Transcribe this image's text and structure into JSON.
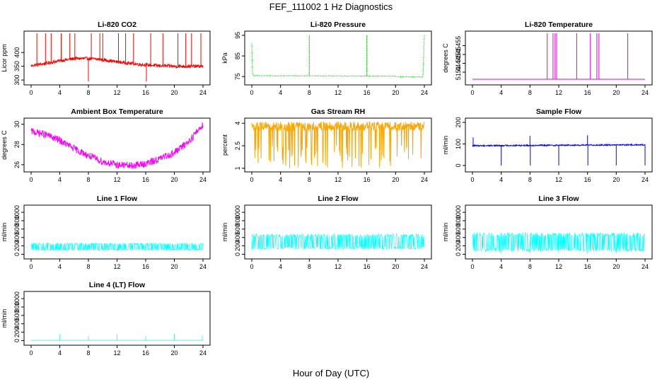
{
  "figure": {
    "title": "FEF_111002  1 Hz Diagnostics",
    "xlabel": "Hour of Day (UTC)"
  },
  "chart_data": [
    {
      "type": "line",
      "title": "Li-820 CO2",
      "ylabel": "Licor ppm",
      "color": "#ff0000",
      "xlim": [
        0,
        24
      ],
      "xticks": [
        0,
        4,
        8,
        12,
        16,
        20,
        24
      ],
      "ylim": [
        290,
        470
      ],
      "yticks": [
        300,
        350,
        400
      ],
      "baseline": [
        [
          0,
          352
        ],
        [
          2,
          360
        ],
        [
          4,
          370
        ],
        [
          6,
          378
        ],
        [
          8,
          378
        ],
        [
          10,
          374
        ],
        [
          12,
          366
        ],
        [
          14,
          360
        ],
        [
          16,
          355
        ],
        [
          18,
          352
        ],
        [
          20,
          350
        ],
        [
          22,
          350
        ],
        [
          24,
          350
        ]
      ],
      "noise": 6,
      "spikes": [
        [
          0.8,
          470
        ],
        [
          2.0,
          470
        ],
        [
          2.8,
          470
        ],
        [
          4.2,
          470
        ],
        [
          5.4,
          470
        ],
        [
          6.1,
          470
        ],
        [
          8.0,
          295
        ],
        [
          8.4,
          470
        ],
        [
          9.6,
          470
        ],
        [
          10.0,
          470
        ],
        [
          12.2,
          470
        ],
        [
          13.2,
          470
        ],
        [
          14.3,
          470
        ],
        [
          16.1,
          295
        ],
        [
          16.7,
          470
        ],
        [
          18.4,
          470
        ],
        [
          20.5,
          470
        ],
        [
          21.6,
          470
        ],
        [
          22.4,
          470
        ],
        [
          23.7,
          470
        ]
      ]
    },
    {
      "type": "line",
      "title": "Li-820 Pressure",
      "ylabel": "kPa",
      "color": "#00c000",
      "dotted": true,
      "xlim": [
        0,
        24
      ],
      "xticks": [
        0,
        4,
        8,
        12,
        16,
        20,
        24
      ],
      "ylim": [
        72,
        96
      ],
      "yticks": [
        75,
        85,
        95
      ],
      "baseline": [
        [
          0,
          91
        ],
        [
          0.1,
          76
        ],
        [
          0.3,
          75.4
        ],
        [
          20,
          75.2
        ],
        [
          20.1,
          75
        ],
        [
          23.8,
          74.8
        ],
        [
          24,
          95
        ]
      ],
      "noise": 0.1,
      "spikes": [
        [
          8.0,
          95
        ],
        [
          16.0,
          95
        ]
      ]
    },
    {
      "type": "line",
      "title": "Li-820 Temperature",
      "ylabel": "degrees C",
      "color": "#e000e0",
      "xlim": [
        0,
        24
      ],
      "xticks": [
        0,
        4,
        8,
        12,
        16,
        20,
        24
      ],
      "ylim": [
        51.434,
        51.462
      ],
      "yticks": [
        51.44,
        51.445,
        51.45,
        51.455
      ],
      "baseline": [
        [
          0,
          51.436
        ],
        [
          24,
          51.436
        ]
      ],
      "noise": 0,
      "spikes": [
        [
          10.4,
          51.462
        ],
        [
          11.2,
          51.462
        ],
        [
          11.5,
          51.462
        ],
        [
          11.7,
          51.462
        ],
        [
          14.5,
          51.462
        ],
        [
          16.4,
          51.462
        ],
        [
          17.3,
          51.462
        ],
        [
          17.6,
          51.462
        ],
        [
          21.6,
          51.462
        ]
      ]
    },
    {
      "type": "line",
      "title": "Ambient Box Temperature",
      "ylabel": "degrees C",
      "color": "#ff00ff",
      "xlim": [
        0,
        24
      ],
      "xticks": [
        0,
        4,
        8,
        12,
        16,
        20,
        24
      ],
      "ylim": [
        25.5,
        30.4
      ],
      "yticks": [
        26,
        28,
        30
      ],
      "baseline": [
        [
          0,
          29.3
        ],
        [
          2,
          29.0
        ],
        [
          4,
          28.4
        ],
        [
          6,
          27.6
        ],
        [
          8,
          26.9
        ],
        [
          10,
          26.3
        ],
        [
          12,
          26.0
        ],
        [
          14,
          25.9
        ],
        [
          16,
          26.1
        ],
        [
          18,
          26.6
        ],
        [
          20,
          27.2
        ],
        [
          22,
          28.3
        ],
        [
          24,
          30.0
        ]
      ],
      "noise": 0.35,
      "spikes": []
    },
    {
      "type": "line",
      "title": "Gas Stream RH",
      "ylabel": "percent",
      "color": "#ffa500",
      "xlim": [
        0,
        24
      ],
      "xticks": [
        0,
        4,
        8,
        12,
        16,
        20,
        24
      ],
      "ylim": [
        0.9,
        4.2
      ],
      "yticks": [
        1.0,
        2.5,
        4.0
      ],
      "baseline": [
        [
          0,
          3.8
        ],
        [
          24,
          3.8
        ]
      ],
      "noise": 0.3,
      "spikes": []
    },
    {
      "type": "line",
      "title": "Sample Flow",
      "ylabel": "ml/min",
      "color": "#0000ff",
      "xlim": [
        0,
        24
      ],
      "xticks": [
        0,
        4,
        8,
        12,
        16,
        20,
        24
      ],
      "ylim": [
        -20,
        210
      ],
      "yticks": [
        0,
        100,
        200
      ],
      "baseline": [
        [
          0,
          92
        ],
        [
          24,
          96
        ]
      ],
      "noise": 3,
      "spikes": [
        [
          0.1,
          130
        ],
        [
          4.0,
          0
        ],
        [
          8.0,
          138
        ],
        [
          8.05,
          0
        ],
        [
          12.0,
          0
        ],
        [
          16.0,
          140
        ],
        [
          16.05,
          0
        ],
        [
          20.0,
          0
        ],
        [
          24.0,
          0
        ]
      ]
    },
    {
      "type": "line",
      "title": "Line 1 Flow",
      "ylabel": "ml/min",
      "color": "#00ffff",
      "xlim": [
        0,
        24
      ],
      "xticks": [
        0,
        4,
        8,
        12,
        16,
        20,
        24
      ],
      "ylim": [
        -60,
        1120
      ],
      "yticks": [
        0,
        200,
        400,
        600,
        800,
        1000
      ],
      "baseline": [
        [
          0,
          180
        ],
        [
          24,
          180
        ]
      ],
      "noise": 90,
      "spikes": []
    },
    {
      "type": "line",
      "title": "Line 2 Flow",
      "ylabel": "ml/min",
      "color": "#00ffff",
      "xlim": [
        0,
        24
      ],
      "xticks": [
        0,
        4,
        8,
        12,
        16,
        20,
        24
      ],
      "ylim": [
        -60,
        1120
      ],
      "yticks": [
        0,
        200,
        400,
        600,
        800,
        1000
      ],
      "baseline": [
        [
          0,
          300
        ],
        [
          24,
          300
        ]
      ],
      "noise": 190,
      "spikes": []
    },
    {
      "type": "line",
      "title": "Line 3 Flow",
      "ylabel": "ml/min",
      "color": "#00ffff",
      "xlim": [
        0,
        24
      ],
      "xticks": [
        0,
        4,
        8,
        12,
        16,
        20,
        24
      ],
      "ylim": [
        -60,
        1120
      ],
      "yticks": [
        0,
        200,
        400,
        600,
        800,
        1000
      ],
      "baseline": [
        [
          0,
          290
        ],
        [
          24,
          290
        ]
      ],
      "noise": 230,
      "spikes": [
        [
          4.0,
          20
        ],
        [
          8.0,
          20
        ],
        [
          12.0,
          20
        ],
        [
          16.0,
          20
        ],
        [
          20.0,
          20
        ]
      ]
    },
    {
      "type": "line",
      "title": "Line 4 (LT) Flow",
      "ylabel": "ml/min",
      "color": "#00e0e0",
      "xlim": [
        0,
        24
      ],
      "xticks": [
        0,
        4,
        8,
        12,
        16,
        20,
        24
      ],
      "ylim": [
        -60,
        1120
      ],
      "yticks": [
        0,
        200,
        400,
        600,
        800,
        1000
      ],
      "baseline": [
        [
          0,
          5
        ],
        [
          24,
          5
        ]
      ],
      "noise": 0,
      "spikes": [
        [
          4.0,
          150
        ],
        [
          8.0,
          110
        ],
        [
          12.0,
          160
        ],
        [
          16.0,
          110
        ],
        [
          20.0,
          170
        ],
        [
          23.9,
          120
        ]
      ]
    }
  ]
}
